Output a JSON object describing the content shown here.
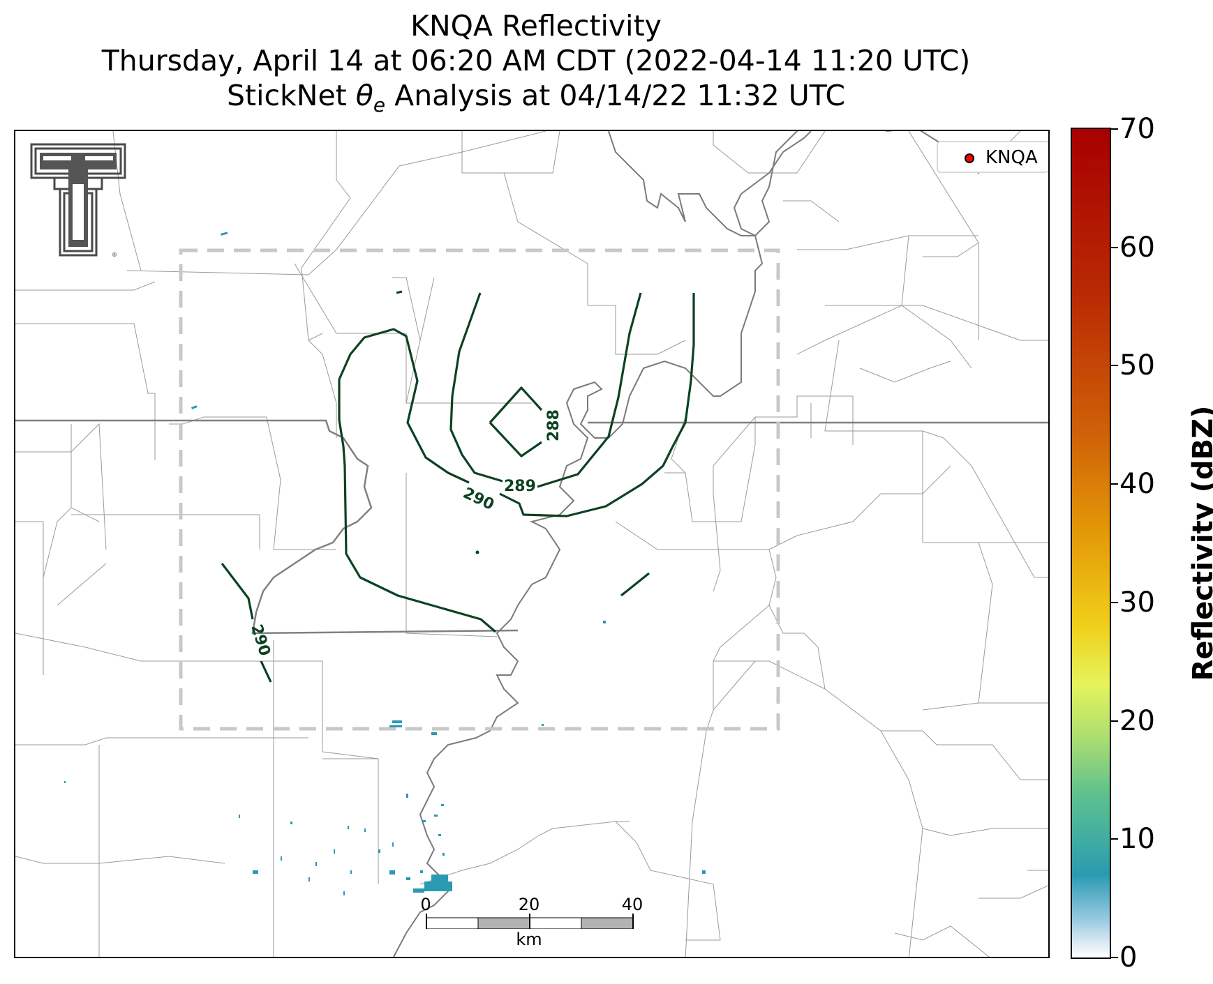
{
  "title": {
    "line1": "KNQA Reflectivity",
    "line2": "Thursday, April 14 at 06:20 AM CDT (2022-04-14 11:20 UTC)",
    "line3_prefix": "StickNet ",
    "line3_symbol": "θ",
    "line3_subscript": "e",
    "line3_suffix": " Analysis at 04/14/22 11:32 UTC"
  },
  "legend": {
    "label": "KNQA",
    "marker_color": "#ff0000"
  },
  "logo": {
    "icon": "texas-tech-double-t-logo",
    "registered_mark": "®"
  },
  "contours": {
    "color": "#0b4222",
    "labels": [
      "288",
      "289",
      "290",
      "290"
    ]
  },
  "colors": {
    "state_border": "#808080",
    "county_border": "#9a9a9a",
    "river": "#7a7a7a",
    "analysis_box": "#c8c8c8"
  },
  "scalebar": {
    "ticks": [
      "0",
      "20",
      "40"
    ],
    "unit": "km"
  },
  "colorbar": {
    "label": "Reflectivity (dBZ)",
    "ticks": [
      "0",
      "10",
      "20",
      "30",
      "40",
      "50",
      "60",
      "70"
    ],
    "range": [
      0,
      70
    ]
  }
}
